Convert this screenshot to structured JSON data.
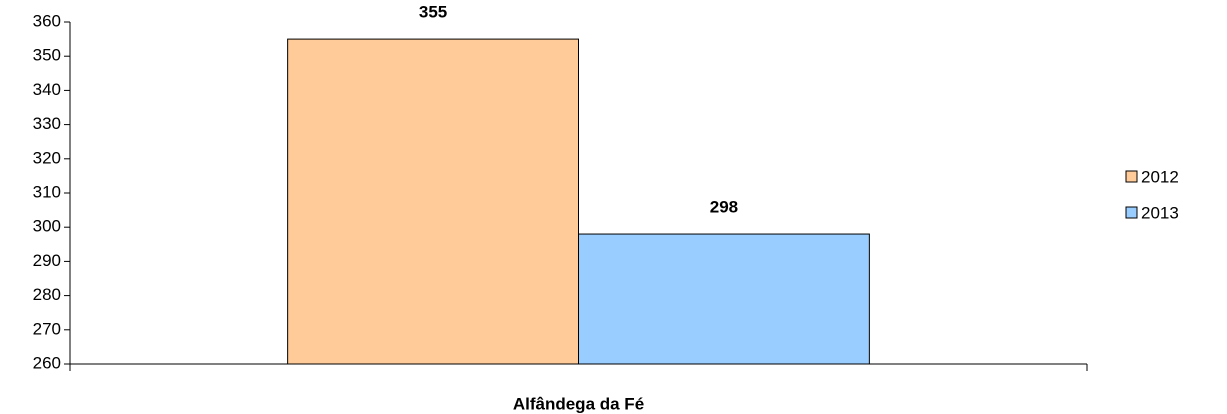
{
  "chart_data": {
    "type": "bar",
    "categories": [
      "Alfândega da Fé"
    ],
    "series": [
      {
        "name": "2012",
        "color": "#ffcc99",
        "values": [
          355
        ]
      },
      {
        "name": "2013",
        "color": "#99ccff",
        "values": [
          298
        ]
      }
    ],
    "ylim": [
      260,
      360
    ],
    "yticks": [
      260,
      270,
      280,
      290,
      300,
      310,
      320,
      330,
      340,
      350,
      360
    ],
    "grid": false,
    "legend": "right"
  }
}
